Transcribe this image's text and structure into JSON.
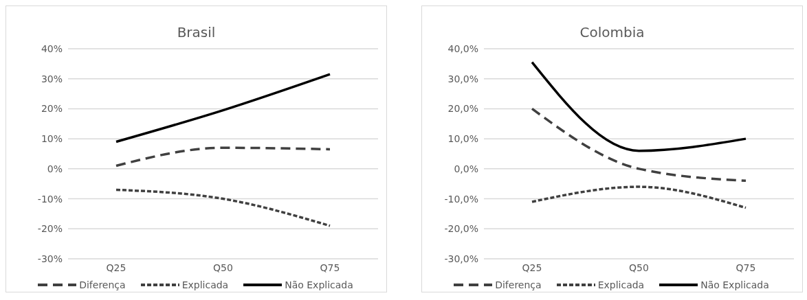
{
  "chart_data": [
    {
      "type": "line",
      "title": "Brasil",
      "categories": [
        "Q25",
        "Q50",
        "Q75"
      ],
      "series": [
        {
          "name": "Diferença",
          "color": "#404040",
          "line_style": "dashed",
          "values": [
            1,
            7,
            6.5
          ]
        },
        {
          "name": "Explicada",
          "color": "#404040",
          "line_style": "dotted",
          "values": [
            -7,
            -10,
            -19
          ]
        },
        {
          "name": "Não Explicada",
          "color": "#000000",
          "line_style": "solid",
          "values": [
            9,
            19.5,
            31.5
          ]
        }
      ],
      "ylim": [
        -30,
        40
      ],
      "yticks": [
        {
          "value": -30,
          "label": "-30%"
        },
        {
          "value": -20,
          "label": "-20%"
        },
        {
          "value": -10,
          "label": "-10%"
        },
        {
          "value": 0,
          "label": "0%"
        },
        {
          "value": 10,
          "label": "10%"
        },
        {
          "value": 20,
          "label": "20%"
        },
        {
          "value": 30,
          "label": "30%"
        },
        {
          "value": 40,
          "label": "40%"
        }
      ],
      "grid": "y",
      "legend": "bottom",
      "marker": "none"
    },
    {
      "type": "line",
      "title": "Colombia",
      "categories": [
        "Q25",
        "Q50",
        "Q75"
      ],
      "series": [
        {
          "name": "Diferença",
          "color": "#404040",
          "line_style": "dashed",
          "values": [
            20,
            0,
            -4
          ]
        },
        {
          "name": "Explicada",
          "color": "#404040",
          "line_style": "dotted",
          "values": [
            -11,
            -6,
            -13
          ]
        },
        {
          "name": "Não Explicada",
          "color": "#000000",
          "line_style": "solid",
          "values": [
            35.5,
            6,
            10
          ]
        }
      ],
      "ylim": [
        -30,
        40
      ],
      "yticks": [
        {
          "value": -30,
          "label": "-30,0%"
        },
        {
          "value": -20,
          "label": "-20,0%"
        },
        {
          "value": -10,
          "label": "-10,0%"
        },
        {
          "value": 0,
          "label": "0,0%"
        },
        {
          "value": 10,
          "label": "10,0%"
        },
        {
          "value": 20,
          "label": "20,0%"
        },
        {
          "value": 30,
          "label": "30,0%"
        },
        {
          "value": 40,
          "label": "40,0%"
        }
      ],
      "grid": "y",
      "legend": "bottom",
      "marker": "none"
    }
  ]
}
